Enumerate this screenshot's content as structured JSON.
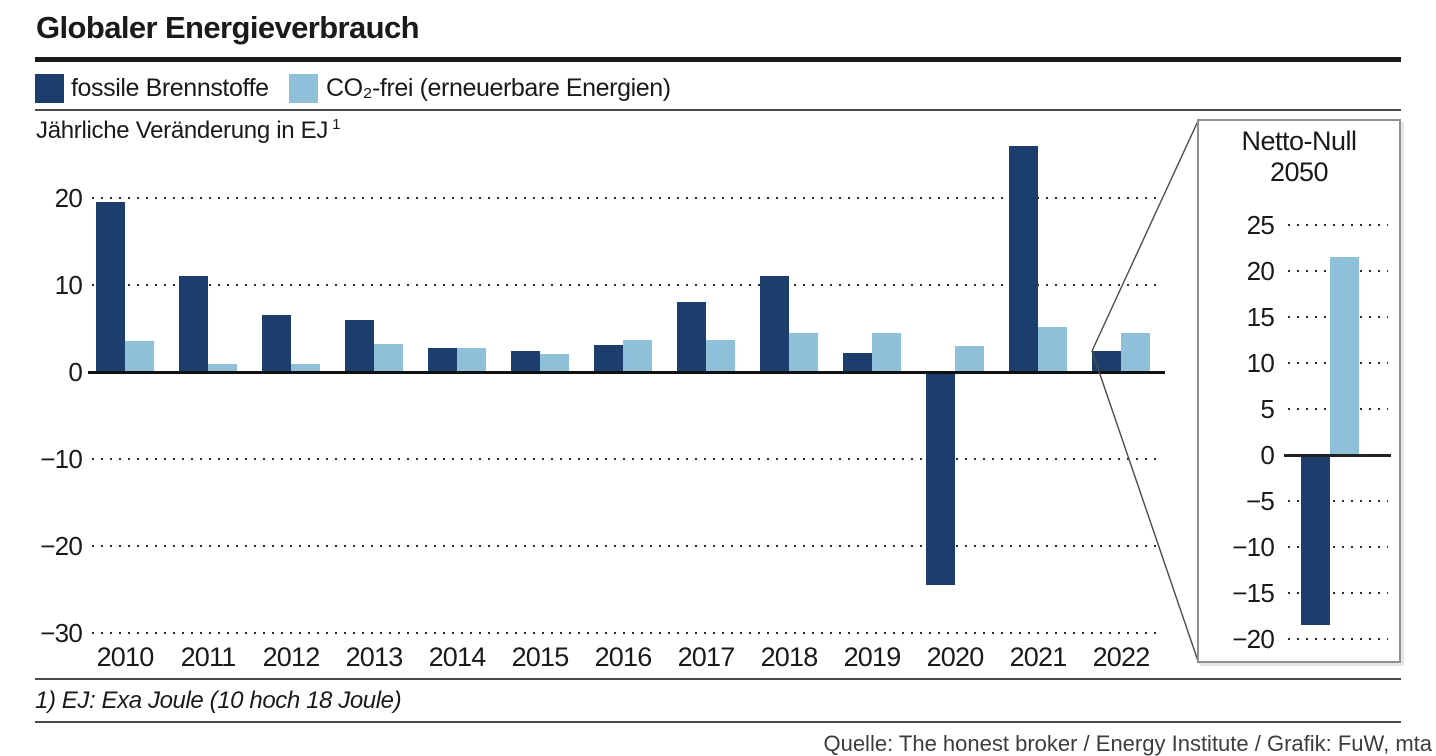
{
  "header": {
    "title": "Globaler Energieverbrauch"
  },
  "legend": [
    {
      "label": "fossile Brennstoffe",
      "color": "#1c3e6c"
    },
    {
      "label": "CO₂-frei (erneuerbare Energien)",
      "color": "#8fc0da"
    }
  ],
  "subtitle": {
    "text": "Jährliche Veränderung in EJ",
    "footnote_marker": "1"
  },
  "chart_data": {
    "type": "bar",
    "title": "Globaler Energieverbrauch",
    "xlabel": "",
    "ylabel": "Jährliche Veränderung in EJ",
    "grid": "dotted horizontal",
    "ylim": [
      -30,
      27
    ],
    "yticks": [
      20,
      10,
      0,
      -10,
      -20,
      -30
    ],
    "categories": [
      "2010",
      "2011",
      "2012",
      "2013",
      "2014",
      "2015",
      "2016",
      "2017",
      "2018",
      "2019",
      "2020",
      "2021",
      "2022"
    ],
    "series": [
      {
        "name": "fossile Brennstoffe",
        "color": "#1c3e6c",
        "values": [
          19.5,
          11,
          6.5,
          6,
          2.8,
          2.4,
          3.1,
          8,
          11,
          2.2,
          -24.5,
          26,
          2.4
        ]
      },
      {
        "name": "CO₂-frei (erneuerbare Energien)",
        "color": "#8fc0da",
        "values": [
          3.6,
          0.9,
          0.9,
          3.2,
          2.8,
          2.1,
          3.7,
          3.7,
          4.5,
          4.5,
          3,
          5.2,
          4.5
        ]
      }
    ],
    "inset": {
      "title_line1": "Netto-Null",
      "title_line2": "2050",
      "yticks": [
        25,
        20,
        15,
        10,
        5,
        0,
        -5,
        -10,
        -15,
        -20
      ],
      "ylim": [
        -20,
        25
      ],
      "series": [
        {
          "name": "fossile Brennstoffe",
          "value": -18.5
        },
        {
          "name": "CO₂-frei (erneuerbare Energien)",
          "value": 21.5
        }
      ]
    }
  },
  "footnote": "1)  EJ: Exa Joule (10 hoch 18 Joule)",
  "source": "Quelle: The honest broker / Energy Institute / Grafik: FuW, mta"
}
